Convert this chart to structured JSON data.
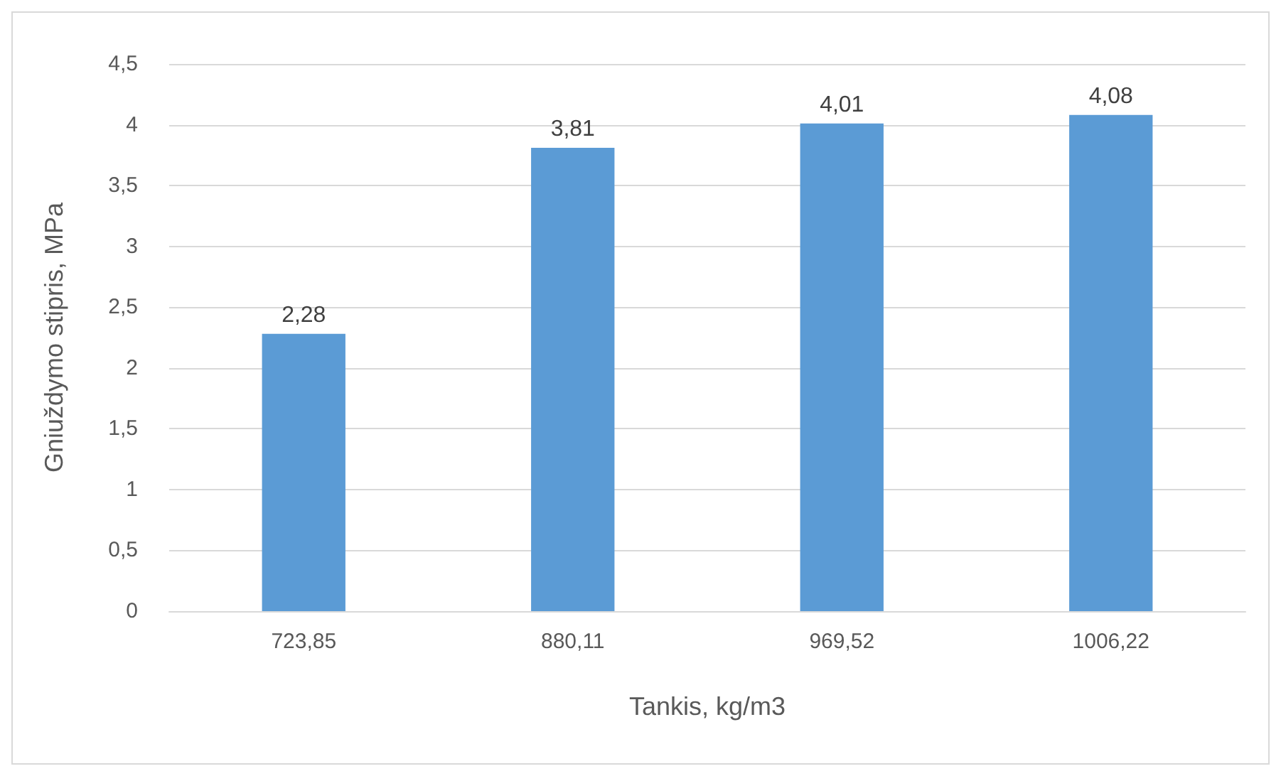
{
  "chart_data": {
    "type": "bar",
    "xlabel": "Tankis, kg/m3",
    "ylabel": "Gniuždymo stipris, MPa",
    "categories": [
      "723,85",
      "880,11",
      "969,52",
      "1006,22"
    ],
    "values": [
      2.28,
      3.81,
      4.01,
      4.08
    ],
    "value_labels": [
      "2,28",
      "3,81",
      "4,01",
      "4,08"
    ],
    "color": "#5b9bd5",
    "ylim": [
      0,
      4.5
    ],
    "yticks": [
      0,
      {
        "value": 0.5,
        "label": "0,5"
      },
      1,
      {
        "value": 1.5,
        "label": "1,5"
      },
      2,
      {
        "value": 2.5,
        "label": "2,5"
      },
      3,
      {
        "value": 3.5,
        "label": "3,5"
      },
      4,
      {
        "value": 4.5,
        "label": "4,5"
      }
    ],
    "grid": "y"
  }
}
